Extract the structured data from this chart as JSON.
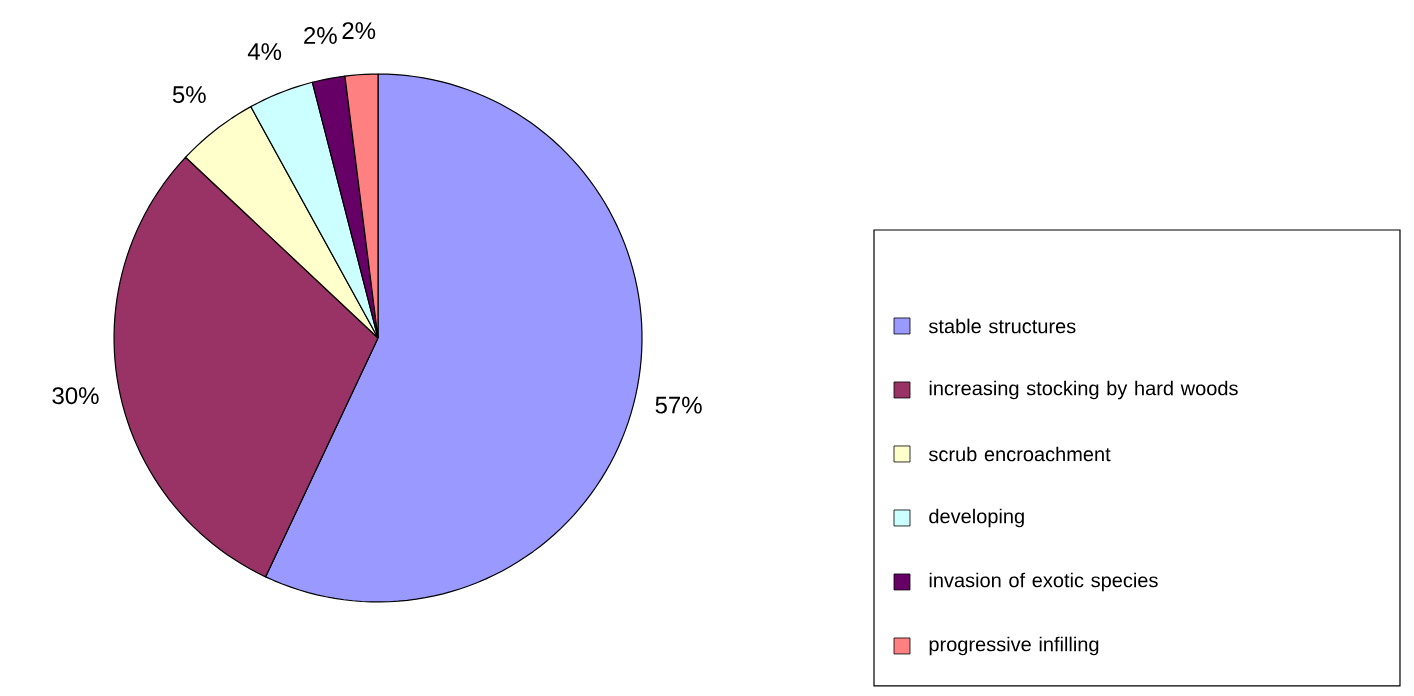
{
  "chart_data": {
    "type": "pie",
    "categories": [
      "stable structures",
      "increasing stocking by hard woods",
      "scrub encroachment",
      "developing",
      "invasion of exotic species",
      "progressive infilling"
    ],
    "values": [
      57,
      30,
      5,
      4,
      2,
      2
    ],
    "colors": [
      "#9999ff",
      "#993366",
      "#ffffcc",
      "#ccffff",
      "#660066",
      "#ff8080"
    ],
    "value_labels": [
      "57%",
      "30%",
      "5%",
      "4%",
      "2%",
      "2%"
    ],
    "legend": "right"
  }
}
